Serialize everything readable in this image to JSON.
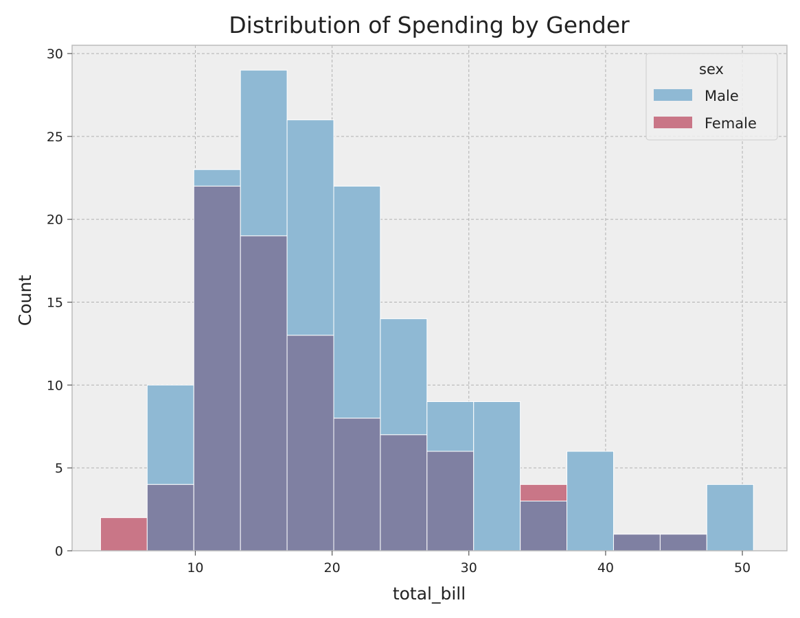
{
  "chart_data": {
    "type": "bar",
    "subtype": "histogram-overlay",
    "title": "Distribution of Spending by Gender",
    "xlabel": "total_bill",
    "ylabel": "Count",
    "xlim": [
      0.99,
      53.26
    ],
    "ylim": [
      0,
      30.5
    ],
    "xticks": [
      10,
      20,
      30,
      40,
      50
    ],
    "yticks": [
      0,
      5,
      10,
      15,
      20,
      25,
      30
    ],
    "grid": true,
    "bin_edges": [
      3.07,
      6.48,
      9.89,
      13.3,
      16.71,
      20.12,
      23.53,
      26.94,
      30.35,
      33.76,
      37.17,
      40.58,
      43.99,
      47.4,
      50.81
    ],
    "legend": {
      "title": "sex",
      "placement": "top-right"
    },
    "series": [
      {
        "name": "Male",
        "color": "#8fb9d4",
        "values": [
          0,
          10,
          23,
          29,
          26,
          22,
          14,
          9,
          9,
          3,
          6,
          1,
          1,
          4
        ]
      },
      {
        "name": "Female",
        "color": "#c97687",
        "values": [
          2,
          4,
          22,
          19,
          13,
          8,
          7,
          6,
          0,
          4,
          0,
          1,
          1,
          0
        ]
      }
    ],
    "overlap_color": "#7f80a2"
  }
}
